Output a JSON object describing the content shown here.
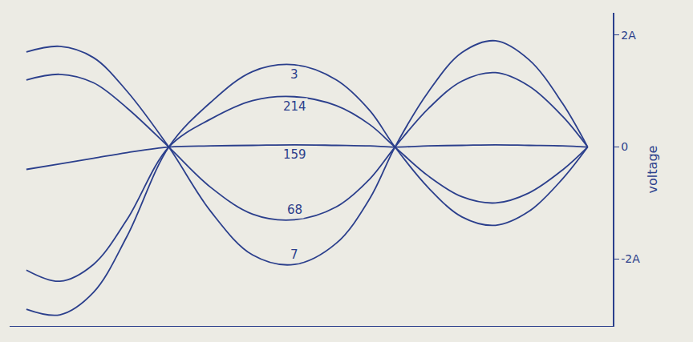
{
  "chart_data": {
    "type": "line",
    "y_label": "voltage",
    "x": [
      0.2,
      0.6,
      1.0,
      1.4,
      1.9,
      2.4,
      2.9,
      3.4,
      3.9,
      4.3,
      4.6,
      5.0,
      5.4,
      5.8,
      6.2,
      6.6,
      6.9
    ],
    "series": [
      {
        "name": "3",
        "values": [
          -2.9,
          -3.0,
          -2.6,
          -1.6,
          0,
          0.8,
          1.35,
          1.47,
          1.2,
          0.65,
          0,
          -0.73,
          -1.25,
          -1.4,
          -1.15,
          -0.57,
          0
        ]
      },
      {
        "name": "214",
        "values": [
          -2.2,
          -2.4,
          -2.1,
          -1.3,
          0,
          0.5,
          0.83,
          0.9,
          0.74,
          0.4,
          0,
          -0.52,
          -0.89,
          -1.0,
          -0.82,
          -0.41,
          0
        ]
      },
      {
        "name": "159",
        "values": [
          -0.4,
          -0.3,
          -0.2,
          -0.1,
          0,
          0.02,
          0.03,
          0.04,
          0.03,
          0.02,
          0,
          0.02,
          0.03,
          0.04,
          0.03,
          0.02,
          0
        ]
      },
      {
        "name": "68",
        "values": [
          1.2,
          1.3,
          1.15,
          0.7,
          0,
          -0.72,
          -1.2,
          -1.3,
          -1.07,
          -0.57,
          0,
          0.69,
          1.18,
          1.33,
          1.09,
          0.55,
          0
        ]
      },
      {
        "name": "7",
        "values": [
          1.7,
          1.8,
          1.6,
          1.0,
          0,
          -1.15,
          -1.93,
          -2.1,
          -1.72,
          -0.92,
          0,
          0.99,
          1.69,
          1.9,
          1.56,
          0.78,
          0
        ]
      }
    ],
    "color": "#2b3f8c",
    "xlim": [
      0,
      7.2
    ],
    "xticks": [],
    "ylim": [
      -3.2,
      2.4
    ],
    "yticks": [
      {
        "value": 2,
        "label": "2A"
      },
      0,
      {
        "value": -2,
        "label": "-2A"
      }
    ],
    "tick_labels": "y",
    "grid": false,
    "data_labels": false
  }
}
